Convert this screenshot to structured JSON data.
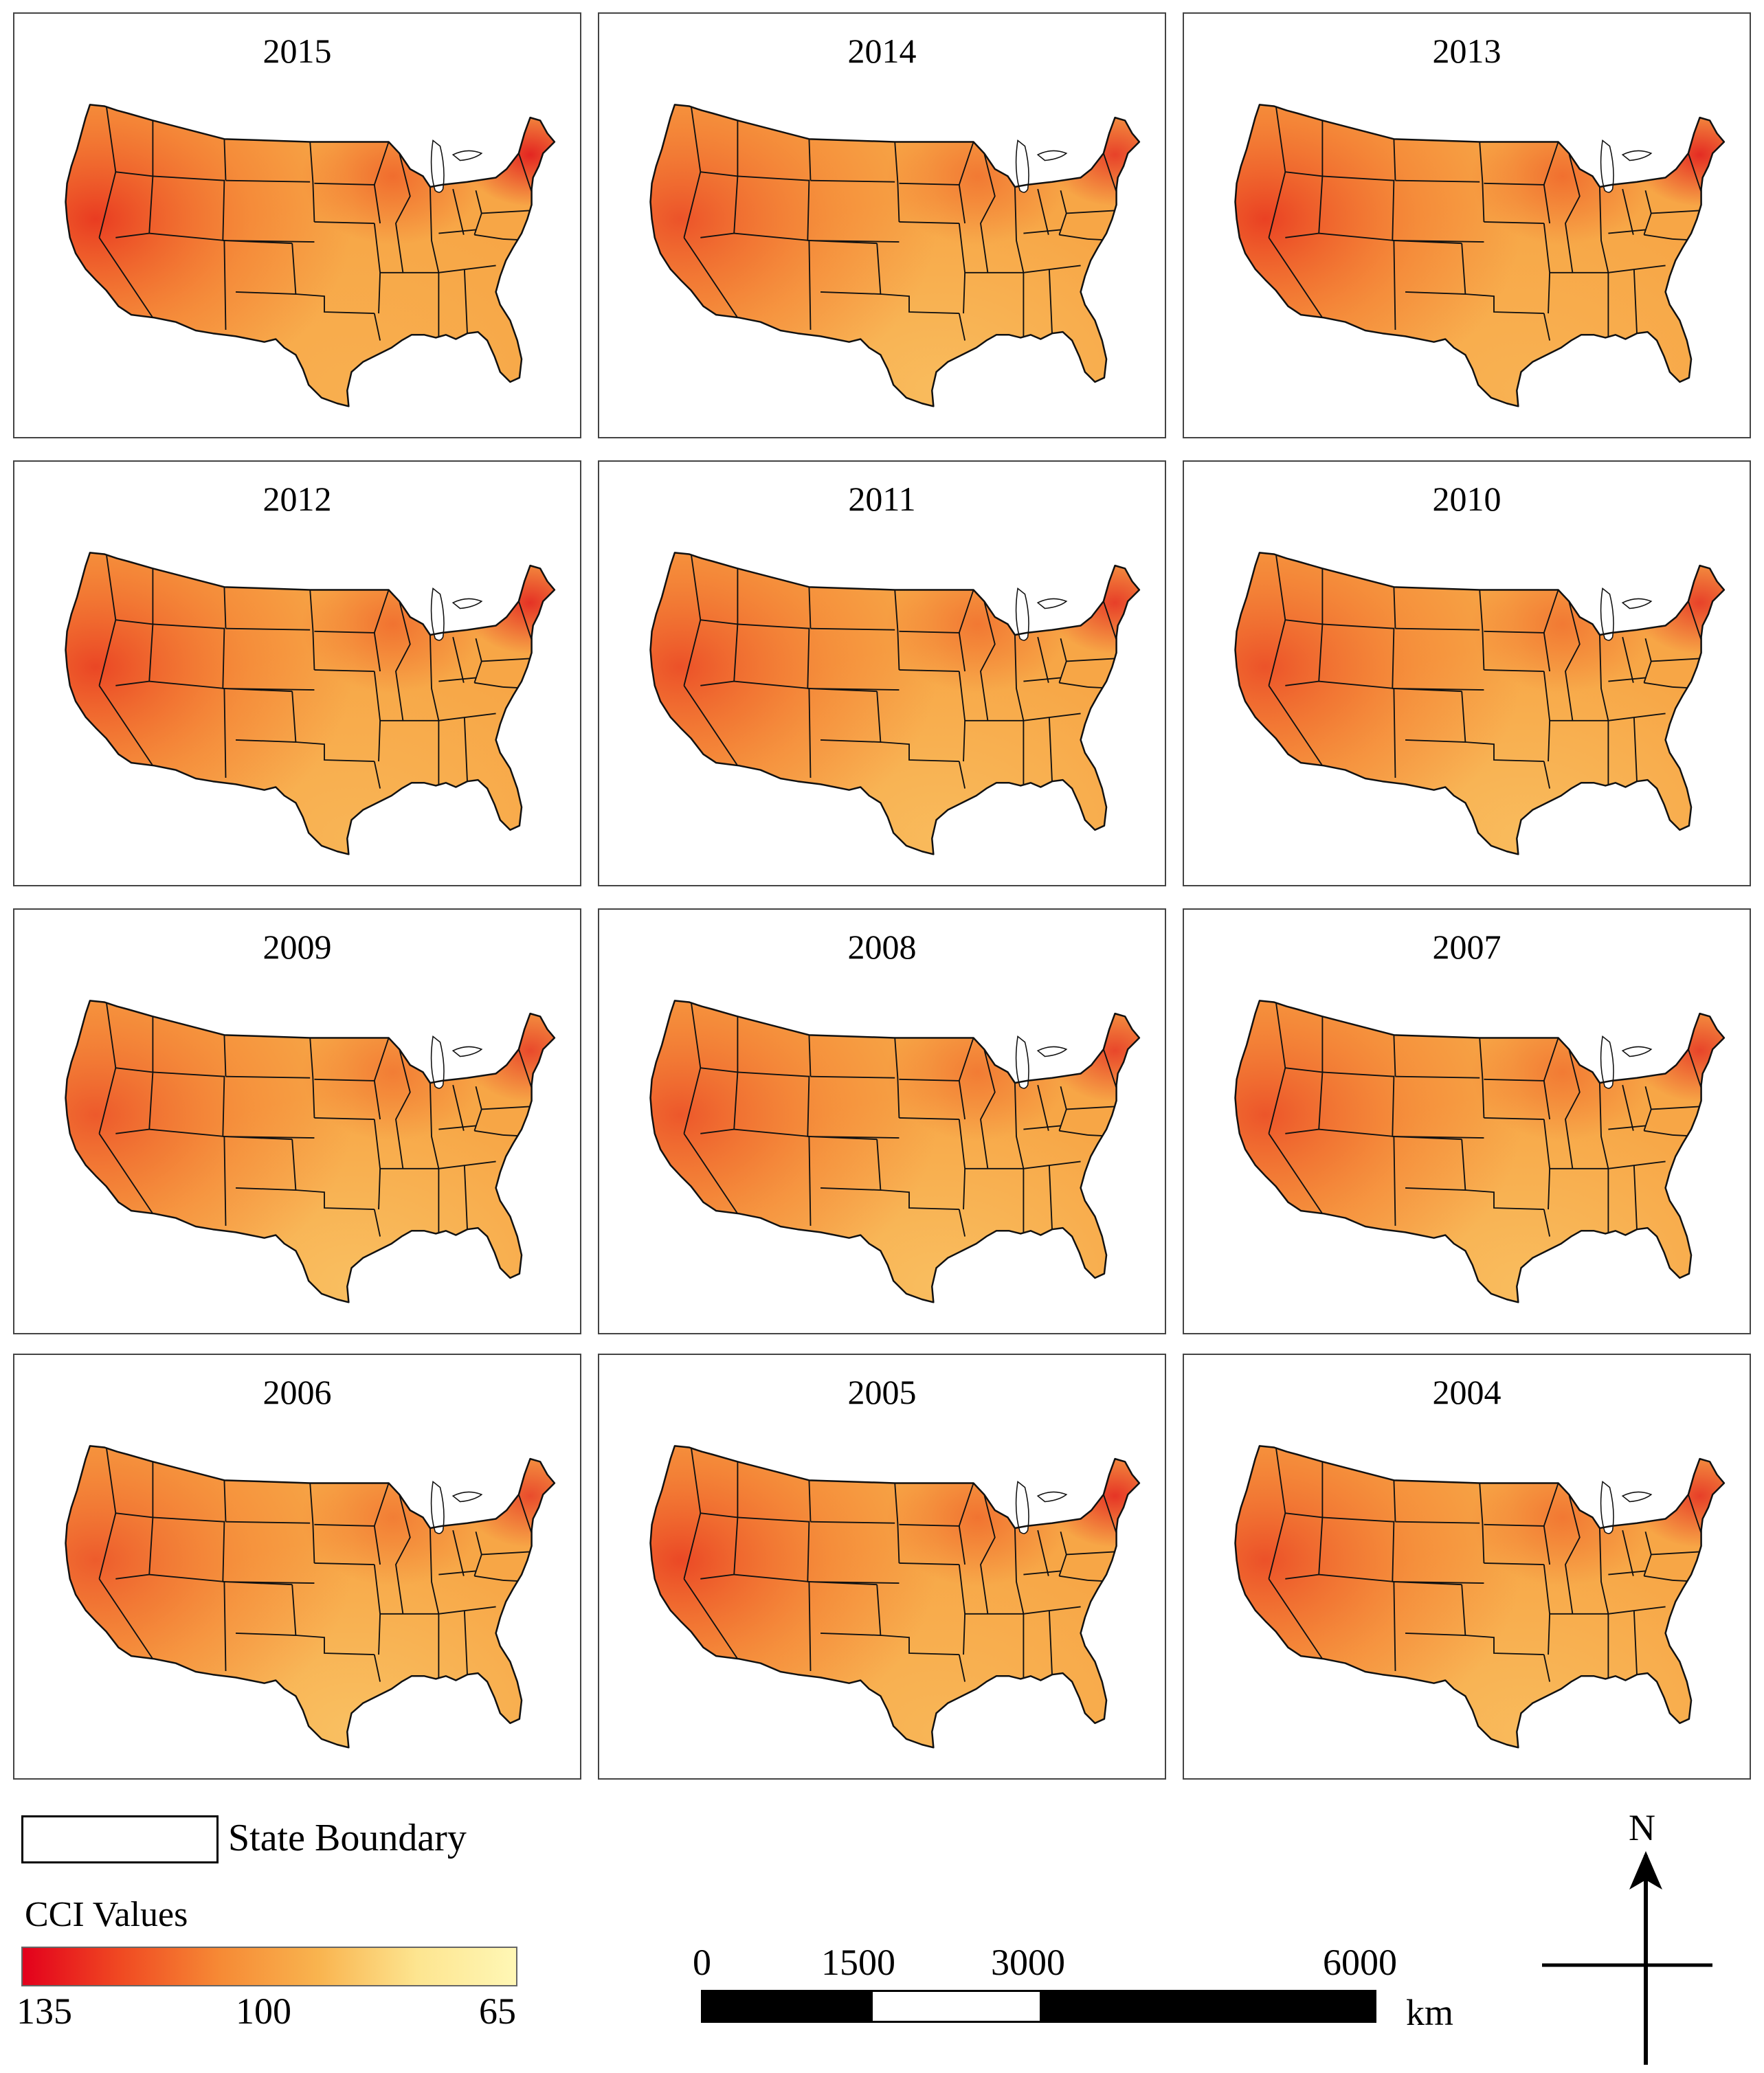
{
  "figure": {
    "panels": [
      {
        "year": "2015",
        "intensity": 1.0
      },
      {
        "year": "2014",
        "intensity": 0.78
      },
      {
        "year": "2013",
        "intensity": 0.95
      },
      {
        "year": "2012",
        "intensity": 0.9
      },
      {
        "year": "2011",
        "intensity": 0.8
      },
      {
        "year": "2010",
        "intensity": 0.78
      },
      {
        "year": "2009",
        "intensity": 0.72
      },
      {
        "year": "2008",
        "intensity": 0.74
      },
      {
        "year": "2007",
        "intensity": 0.76
      },
      {
        "year": "2006",
        "intensity": 0.7
      },
      {
        "year": "2005",
        "intensity": 0.88
      },
      {
        "year": "2004",
        "intensity": 0.8
      }
    ]
  },
  "legend": {
    "boundary_label": "State Boundary",
    "cci_title": "CCI Values",
    "ramp_high": "135",
    "ramp_mid": "100",
    "ramp_low": "65",
    "ramp_colors": [
      "#e3001c",
      "#f04a22",
      "#f68a35",
      "#f9b44f",
      "#fde590",
      "#fff7b5"
    ]
  },
  "scale": {
    "labels": [
      "0",
      "1500",
      "3000",
      "6000"
    ],
    "unit": "km"
  },
  "north_arrow": {
    "label": "N"
  }
}
